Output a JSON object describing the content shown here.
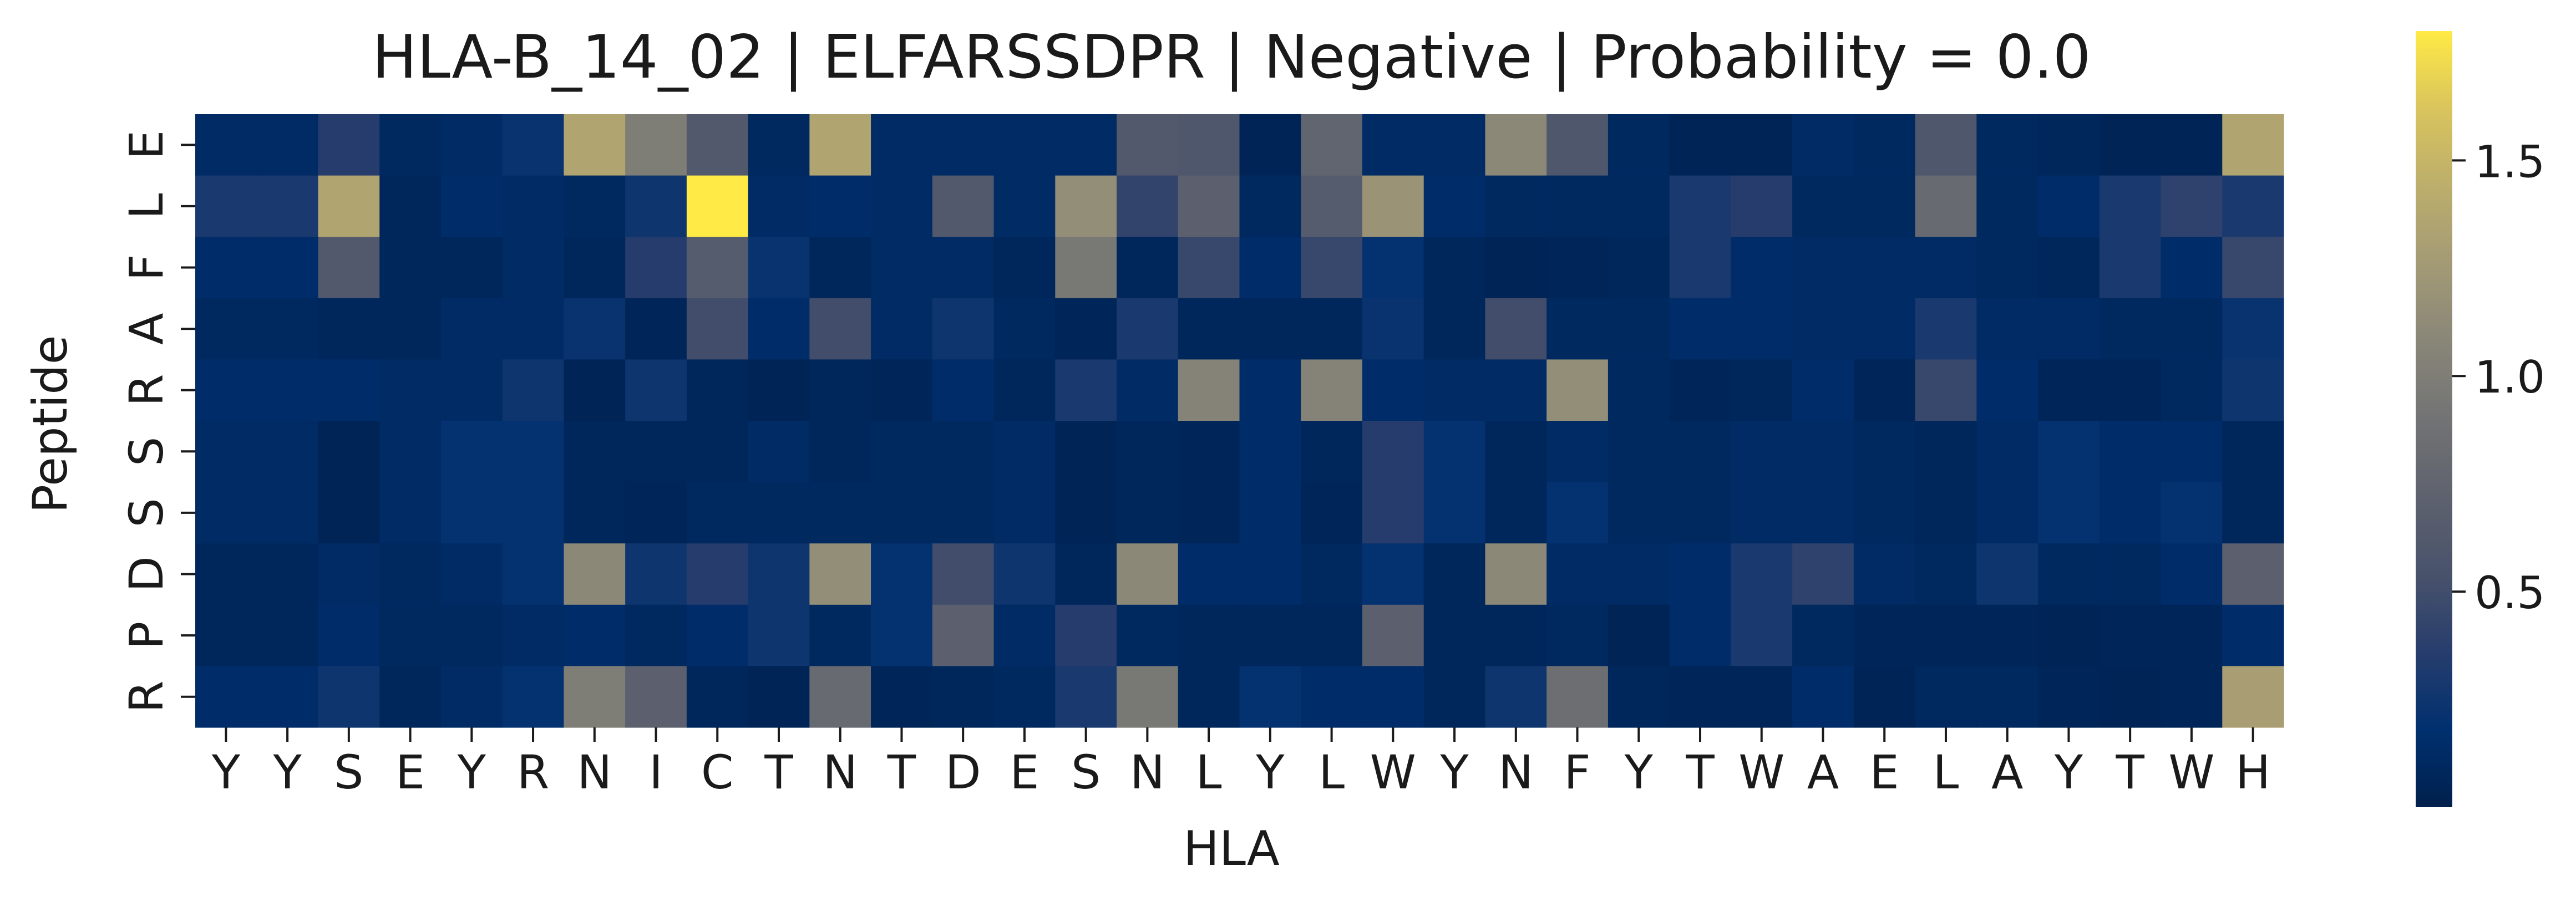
{
  "chart_data": {
    "type": "heatmap",
    "title": "HLA-B_14_02 | ELFARSSDPR | Negative | Probability = 0.0",
    "xlabel": "HLA",
    "ylabel": "Peptide",
    "x": [
      "Y",
      "Y",
      "S",
      "E",
      "Y",
      "R",
      "N",
      "I",
      "C",
      "T",
      "N",
      "T",
      "D",
      "E",
      "S",
      "N",
      "L",
      "Y",
      "L",
      "W",
      "Y",
      "N",
      "F",
      "Y",
      "T",
      "W",
      "A",
      "E",
      "L",
      "A",
      "Y",
      "T",
      "W",
      "H"
    ],
    "y": [
      "E",
      "L",
      "F",
      "A",
      "R",
      "S",
      "S",
      "D",
      "P",
      "R"
    ],
    "colormap": "cividis",
    "vmin": 0.0,
    "vmax": 1.8,
    "colorbar_ticks": [
      0.5,
      1.0,
      1.5
    ],
    "colorbar_tick_labels": [
      "0.5",
      "1.0",
      "1.5"
    ],
    "values": [
      [
        0.12,
        0.12,
        0.35,
        0.1,
        0.12,
        0.22,
        1.35,
        1.0,
        0.62,
        0.1,
        1.35,
        0.12,
        0.12,
        0.12,
        0.12,
        0.62,
        0.6,
        0.05,
        0.75,
        0.12,
        0.12,
        1.1,
        0.6,
        0.1,
        0.05,
        0.05,
        0.12,
        0.1,
        0.6,
        0.1,
        0.08,
        0.05,
        0.05,
        1.35
      ],
      [
        0.3,
        0.3,
        1.35,
        0.08,
        0.15,
        0.12,
        0.1,
        0.25,
        1.8,
        0.12,
        0.15,
        0.12,
        0.62,
        0.12,
        1.15,
        0.42,
        0.7,
        0.1,
        0.65,
        1.2,
        0.15,
        0.1,
        0.1,
        0.1,
        0.3,
        0.35,
        0.1,
        0.1,
        0.8,
        0.1,
        0.15,
        0.3,
        0.4,
        0.3
      ],
      [
        0.15,
        0.15,
        0.62,
        0.08,
        0.08,
        0.12,
        0.08,
        0.35,
        0.65,
        0.22,
        0.08,
        0.12,
        0.12,
        0.08,
        0.95,
        0.08,
        0.45,
        0.15,
        0.45,
        0.2,
        0.08,
        0.05,
        0.06,
        0.08,
        0.3,
        0.15,
        0.12,
        0.12,
        0.12,
        0.1,
        0.08,
        0.3,
        0.15,
        0.45
      ],
      [
        0.1,
        0.1,
        0.08,
        0.08,
        0.12,
        0.12,
        0.22,
        0.06,
        0.5,
        0.15,
        0.5,
        0.12,
        0.25,
        0.1,
        0.06,
        0.3,
        0.08,
        0.08,
        0.08,
        0.22,
        0.08,
        0.5,
        0.1,
        0.1,
        0.15,
        0.15,
        0.12,
        0.12,
        0.3,
        0.12,
        0.12,
        0.1,
        0.1,
        0.22
      ],
      [
        0.15,
        0.15,
        0.15,
        0.12,
        0.12,
        0.25,
        0.05,
        0.25,
        0.08,
        0.05,
        0.08,
        0.06,
        0.15,
        0.08,
        0.3,
        0.12,
        1.05,
        0.15,
        1.05,
        0.15,
        0.12,
        0.12,
        1.15,
        0.1,
        0.06,
        0.08,
        0.15,
        0.06,
        0.45,
        0.15,
        0.06,
        0.06,
        0.1,
        0.25
      ],
      [
        0.12,
        0.12,
        0.05,
        0.12,
        0.2,
        0.2,
        0.08,
        0.08,
        0.08,
        0.12,
        0.08,
        0.1,
        0.1,
        0.12,
        0.05,
        0.08,
        0.06,
        0.15,
        0.08,
        0.35,
        0.2,
        0.08,
        0.12,
        0.1,
        0.1,
        0.12,
        0.12,
        0.1,
        0.08,
        0.12,
        0.2,
        0.15,
        0.15,
        0.08
      ],
      [
        0.12,
        0.12,
        0.05,
        0.12,
        0.2,
        0.2,
        0.08,
        0.06,
        0.1,
        0.1,
        0.1,
        0.1,
        0.1,
        0.12,
        0.05,
        0.08,
        0.06,
        0.15,
        0.06,
        0.35,
        0.2,
        0.08,
        0.2,
        0.1,
        0.1,
        0.12,
        0.12,
        0.1,
        0.08,
        0.12,
        0.2,
        0.15,
        0.2,
        0.08
      ],
      [
        0.08,
        0.08,
        0.12,
        0.1,
        0.12,
        0.2,
        1.1,
        0.25,
        0.35,
        0.25,
        1.15,
        0.2,
        0.5,
        0.25,
        0.08,
        1.1,
        0.15,
        0.15,
        0.1,
        0.2,
        0.08,
        1.1,
        0.12,
        0.12,
        0.15,
        0.3,
        0.4,
        0.12,
        0.1,
        0.25,
        0.1,
        0.1,
        0.15,
        0.7
      ],
      [
        0.08,
        0.08,
        0.15,
        0.1,
        0.1,
        0.12,
        0.15,
        0.1,
        0.15,
        0.25,
        0.1,
        0.2,
        0.7,
        0.12,
        0.35,
        0.1,
        0.08,
        0.08,
        0.08,
        0.7,
        0.08,
        0.08,
        0.1,
        0.05,
        0.15,
        0.3,
        0.1,
        0.06,
        0.06,
        0.06,
        0.05,
        0.06,
        0.06,
        0.15
      ],
      [
        0.15,
        0.15,
        0.25,
        0.08,
        0.12,
        0.2,
        1.0,
        0.7,
        0.08,
        0.05,
        0.8,
        0.06,
        0.08,
        0.1,
        0.3,
        0.95,
        0.08,
        0.2,
        0.15,
        0.15,
        0.08,
        0.25,
        0.85,
        0.08,
        0.06,
        0.06,
        0.15,
        0.05,
        0.1,
        0.1,
        0.06,
        0.05,
        0.06,
        1.3
      ]
    ]
  }
}
